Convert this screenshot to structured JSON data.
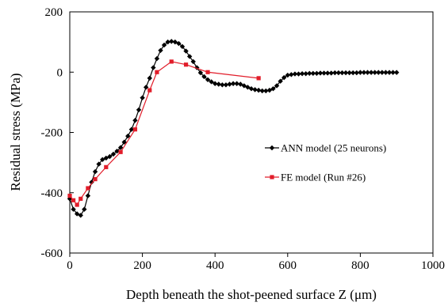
{
  "chart_data": {
    "type": "line",
    "title": "",
    "xlabel": "Depth beneath the shot-peened surface Z (μm)",
    "ylabel": "Residual stress (MPa)",
    "xlim": [
      0,
      1000
    ],
    "ylim": [
      -600,
      200
    ],
    "xticks": [
      0,
      200,
      400,
      600,
      800,
      1000
    ],
    "yticks": [
      -600,
      -400,
      -200,
      0,
      200
    ],
    "xtick_labels": [
      "0",
      "200",
      "400",
      "600",
      "800",
      "1000"
    ],
    "ytick_labels": [
      "-600",
      "-400",
      "-200",
      "0",
      "200"
    ],
    "grid": false,
    "legend_position": "right",
    "series": [
      {
        "name": "ANN model (25 neurons)",
        "color": "#000000",
        "marker": "diamond",
        "x": [
          0,
          10,
          20,
          30,
          40,
          50,
          60,
          70,
          80,
          90,
          100,
          110,
          120,
          130,
          140,
          150,
          160,
          170,
          180,
          190,
          200,
          210,
          220,
          230,
          240,
          250,
          260,
          270,
          280,
          290,
          300,
          310,
          320,
          330,
          340,
          350,
          360,
          370,
          380,
          390,
          400,
          410,
          420,
          430,
          440,
          450,
          460,
          470,
          480,
          490,
          500,
          510,
          520,
          530,
          540,
          550,
          560,
          570,
          580,
          590,
          600,
          610,
          620,
          630,
          640,
          650,
          660,
          670,
          680,
          690,
          700,
          710,
          720,
          730,
          740,
          750,
          760,
          770,
          780,
          790,
          800,
          810,
          820,
          830,
          840,
          850,
          860,
          870,
          880,
          890,
          900
        ],
        "y": [
          -420,
          -455,
          -470,
          -475,
          -455,
          -410,
          -365,
          -330,
          -305,
          -290,
          -285,
          -280,
          -272,
          -262,
          -250,
          -232,
          -212,
          -190,
          -160,
          -125,
          -85,
          -50,
          -20,
          15,
          45,
          72,
          90,
          100,
          102,
          100,
          95,
          85,
          70,
          52,
          35,
          15,
          -2,
          -15,
          -25,
          -32,
          -38,
          -40,
          -42,
          -42,
          -40,
          -38,
          -38,
          -40,
          -45,
          -50,
          -55,
          -58,
          -60,
          -62,
          -62,
          -60,
          -55,
          -45,
          -30,
          -18,
          -10,
          -8,
          -6,
          -6,
          -5,
          -5,
          -4,
          -4,
          -4,
          -3,
          -3,
          -3,
          -3,
          -2,
          -2,
          -2,
          -2,
          -2,
          -2,
          -2,
          -1,
          -1,
          -1,
          -1,
          -1,
          -1,
          -1,
          -1,
          -1,
          -1,
          -1
        ]
      },
      {
        "name": "FE model (Run #26)",
        "color": "#e11d2a",
        "marker": "square",
        "x": [
          0,
          10,
          20,
          30,
          50,
          70,
          100,
          140,
          180,
          220,
          240,
          280,
          320,
          380,
          520
        ],
        "y": [
          -410,
          -425,
          -440,
          -420,
          -385,
          -355,
          -315,
          -265,
          -190,
          -60,
          0,
          35,
          25,
          0,
          -20
        ]
      }
    ]
  }
}
